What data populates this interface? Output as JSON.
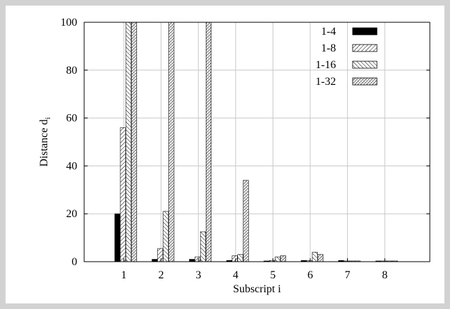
{
  "chart_data": {
    "type": "bar",
    "categories": [
      "1",
      "2",
      "3",
      "4",
      "5",
      "6",
      "7",
      "8"
    ],
    "series": [
      {
        "name": "1-4",
        "values": [
          20,
          1,
          1,
          0.5,
          0.3,
          0.5,
          0.5,
          0.3
        ],
        "pattern": "solid"
      },
      {
        "name": "1-8",
        "values": [
          56,
          5.5,
          2,
          2.5,
          0.5,
          0.5,
          0.3,
          0.3
        ],
        "pattern": "hatch-back"
      },
      {
        "name": "1-16",
        "values": [
          100,
          21,
          12.5,
          3,
          2,
          4,
          0.3,
          0.3
        ],
        "pattern": "hatch-fwd"
      },
      {
        "name": "1-32",
        "values": [
          100,
          100,
          100,
          34,
          2.5,
          3,
          0.3,
          0.3
        ],
        "pattern": "crosshatch"
      }
    ],
    "xlabel": "Subscript i",
    "ylabel_main": "Distance d",
    "ylabel_sub": "i",
    "ylim": [
      0,
      100
    ],
    "yticks": [
      0,
      20,
      40,
      60,
      80,
      100
    ],
    "grid": true,
    "legend_position": "top-right"
  }
}
